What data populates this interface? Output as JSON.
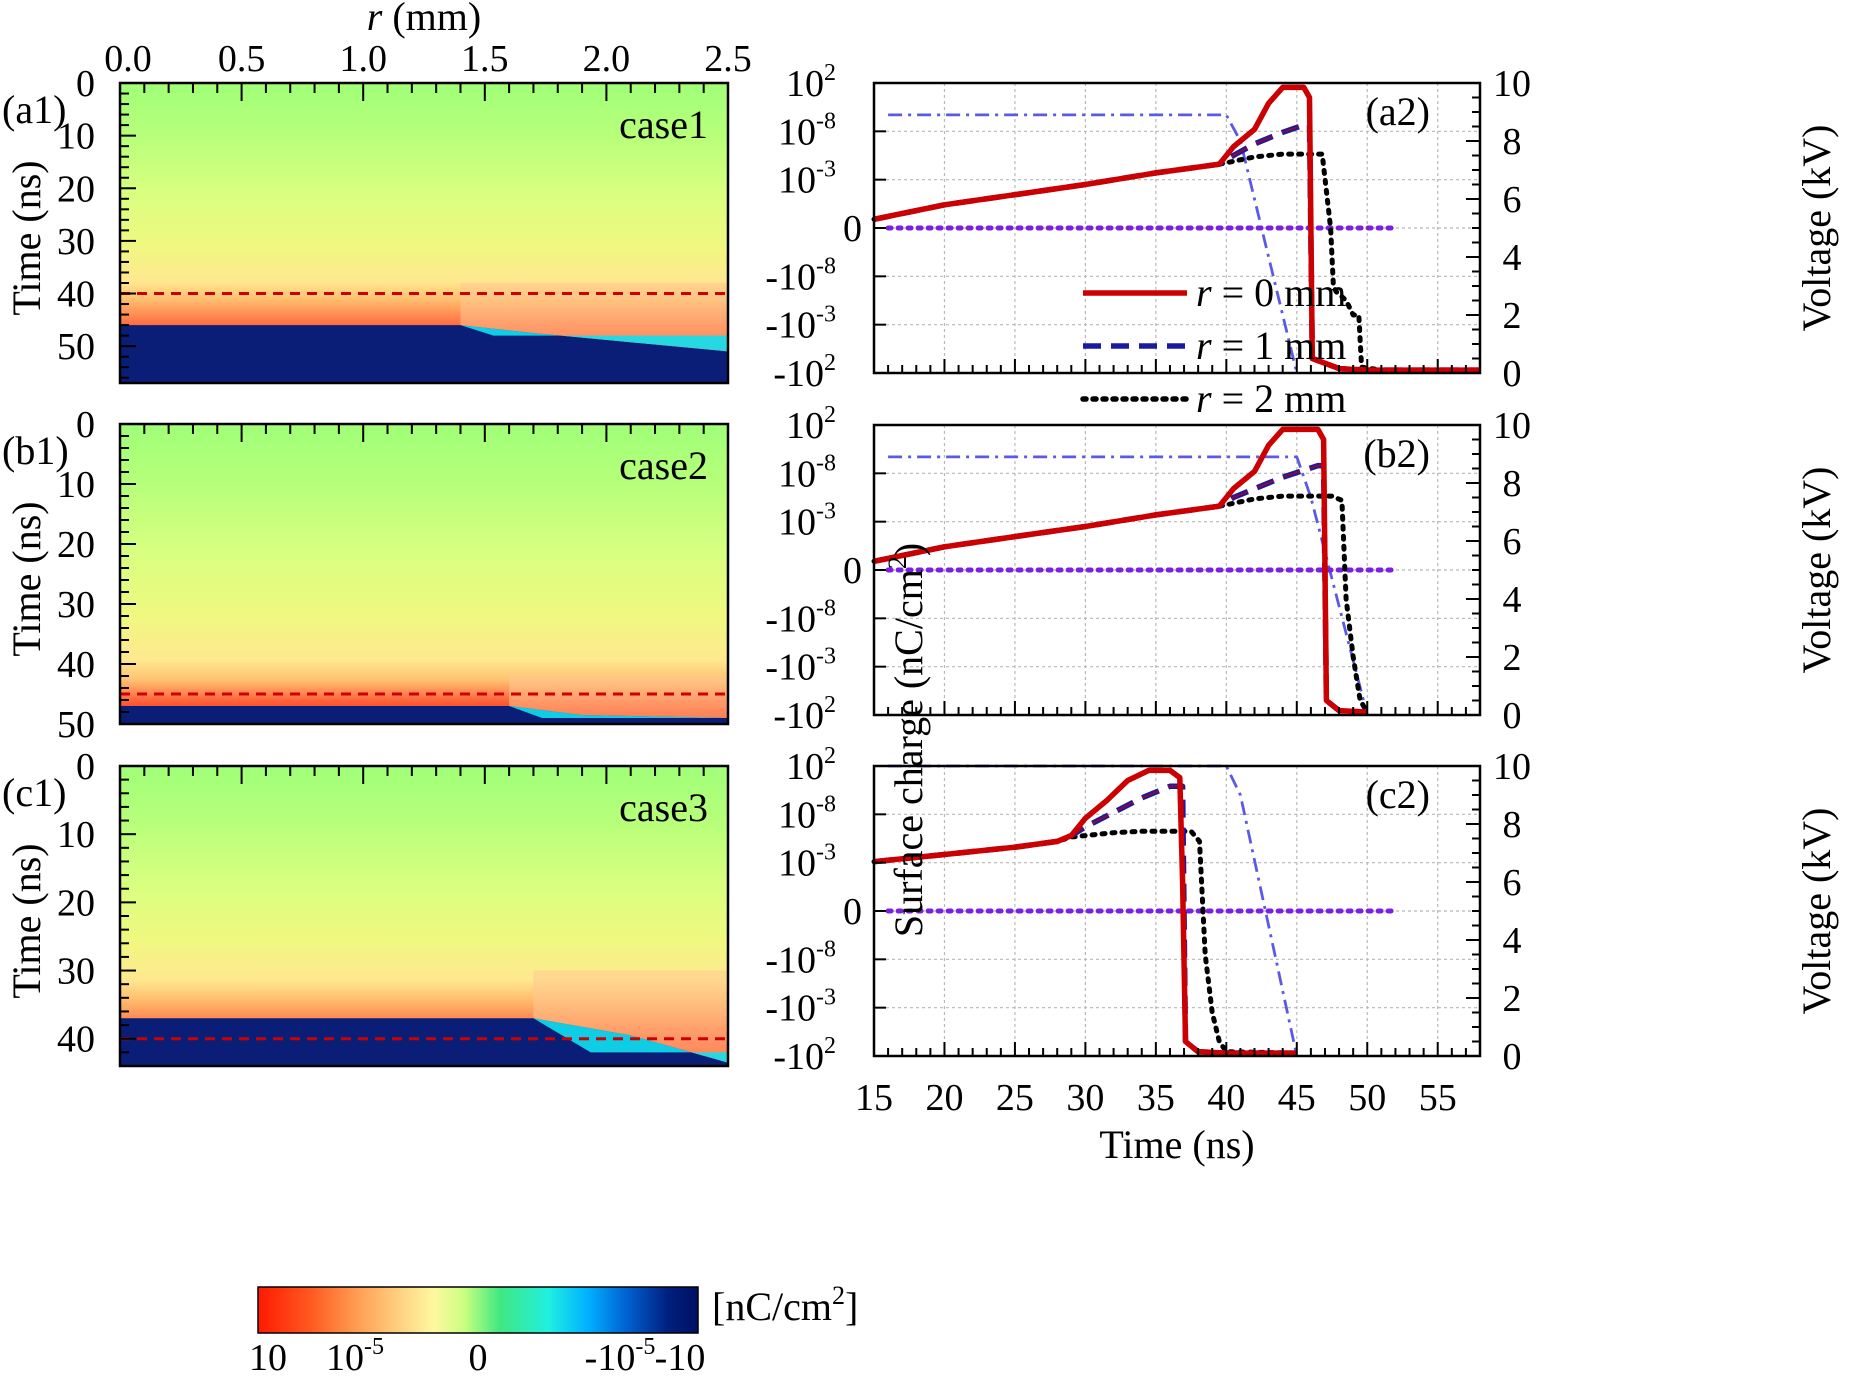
{
  "chart_data": [
    {
      "type": "heatmap",
      "panel": "(a1)",
      "case_label": "case1",
      "xlabel": "r (mm)",
      "xlabel_var": "r",
      "xlabel_unit": " (mm)",
      "ylabel": "Time (ns)",
      "xlim": [
        0,
        2.5
      ],
      "ylim": [
        0,
        57
      ],
      "x_ticks": [
        "0.0",
        "0.5",
        "1.0",
        "1.5",
        "2.0",
        "2.5"
      ],
      "x_tick_values": [
        0,
        0.5,
        1.0,
        1.5,
        2.0,
        2.5
      ],
      "y_ticks": [
        "0",
        "10",
        "20",
        "30",
        "40",
        "50"
      ],
      "y_tick_values": [
        0,
        10,
        20,
        30,
        40,
        50
      ],
      "dashed_line_time": 40,
      "positive_band_start_time": 37,
      "boundary": [
        [
          0,
          46
        ],
        [
          1.4,
          46
        ],
        [
          1.7,
          47.5
        ],
        [
          2.5,
          51
        ]
      ],
      "cyan_end_time": 48
    },
    {
      "type": "heatmap",
      "panel": "(b1)",
      "case_label": "case2",
      "ylabel": "Time (ns)",
      "xlim": [
        0,
        2.5
      ],
      "ylim": [
        0,
        50
      ],
      "y_ticks": [
        "0",
        "10",
        "20",
        "30",
        "40",
        "50"
      ],
      "y_tick_values": [
        0,
        10,
        20,
        30,
        40,
        50
      ],
      "dashed_line_time": 45,
      "positive_band_start_time": 41,
      "boundary": [
        [
          0,
          47
        ],
        [
          1.6,
          47
        ],
        [
          1.9,
          48.5
        ],
        [
          2.5,
          49
        ]
      ],
      "cyan_end_time": 49
    },
    {
      "type": "heatmap",
      "panel": "(c1)",
      "case_label": "case3",
      "ylabel": "Time (ns)",
      "xlim": [
        0,
        2.5
      ],
      "ylim": [
        0,
        44
      ],
      "y_ticks": [
        "0",
        "10",
        "20",
        "30",
        "40"
      ],
      "y_tick_values": [
        0,
        10,
        20,
        30,
        40
      ],
      "dashed_line_time": 40,
      "positive_band_start_time": 29,
      "boundary": [
        [
          0,
          37
        ],
        [
          1.7,
          37
        ],
        [
          2.1,
          39.5
        ],
        [
          2.5,
          43.5
        ]
      ],
      "cyan_end_time": 42
    },
    {
      "type": "line",
      "panel": "(a2)",
      "xlim": [
        15,
        58
      ],
      "y_left_ticks": [
        "10",
        "10",
        "10",
        "0",
        "-10",
        "-10",
        "-10"
      ],
      "y_left_exponents": [
        "2",
        "-8",
        "-3",
        "",
        "-8",
        "-3",
        "2"
      ],
      "y_right_ticks": [
        "0",
        "2",
        "4",
        "6",
        "8",
        "10"
      ],
      "y_right_tick_values": [
        0,
        2,
        4,
        6,
        8,
        10
      ],
      "y_right_label": "Voltage (kV)",
      "series": [
        {
          "name": "r = 0 mm",
          "color": "#cc0000",
          "style": "solid",
          "x": [
            15,
            20,
            25,
            30,
            35,
            39.5,
            40.5,
            42,
            43,
            44,
            45.5,
            45.9,
            46.1,
            48,
            50,
            58
          ],
          "y": [
            0.53,
            0.58,
            0.615,
            0.65,
            0.69,
            0.72,
            0.78,
            0.84,
            0.93,
            0.985,
            0.985,
            0.95,
            0.05,
            0.015,
            0.01,
            0.01
          ]
        },
        {
          "name": "r = 1 mm",
          "color": "#1a1aa0",
          "style": "dashed",
          "x": [
            15,
            20,
            25,
            30,
            35,
            39.5,
            40.5,
            42,
            44,
            45.5,
            45.9,
            46.1,
            48,
            50,
            58
          ],
          "y": [
            0.53,
            0.58,
            0.615,
            0.65,
            0.69,
            0.72,
            0.75,
            0.79,
            0.83,
            0.855,
            0.855,
            0.05,
            0.015,
            0.01,
            0.01
          ]
        },
        {
          "name": "r = 2 mm",
          "color": "#000000",
          "style": "dotted",
          "x": [
            15,
            20,
            25,
            30,
            35,
            39.5,
            40.5,
            42,
            44,
            46.8,
            47.4,
            47.6,
            47.8,
            48.5,
            49,
            49.4,
            49.6,
            51,
            58
          ],
          "y": [
            0.53,
            0.58,
            0.615,
            0.65,
            0.69,
            0.72,
            0.73,
            0.745,
            0.755,
            0.755,
            0.5,
            0.3,
            0.28,
            0.25,
            0.2,
            0.2,
            0.02,
            0.01,
            0.01
          ]
        },
        {
          "name": "",
          "color": "#7a20e0",
          "style": "dotted",
          "x": [
            16,
            52
          ],
          "y": [
            0.5,
            0.5
          ]
        },
        {
          "name": "",
          "color": "#5a5ae6",
          "style": "dashdot",
          "axis": "right",
          "x": [
            16,
            40,
            41,
            45
          ],
          "y": [
            8.9,
            8.9,
            8.0,
            0
          ]
        }
      ]
    },
    {
      "type": "line",
      "panel": "(b2)",
      "xlim": [
        15,
        58
      ],
      "y_left_ticks": [
        "10",
        "10",
        "10",
        "0",
        "-10",
        "-10",
        "-10"
      ],
      "y_left_exponents": [
        "2",
        "-8",
        "-3",
        "",
        "-8",
        "-3",
        "2"
      ],
      "y_right_ticks": [
        "0",
        "2",
        "4",
        "6",
        "8",
        "10"
      ],
      "y_right_tick_values": [
        0,
        2,
        4,
        6,
        8,
        10
      ],
      "y_right_label": "Voltage (kV)",
      "series": [
        {
          "name": "r = 0 mm",
          "color": "#cc0000",
          "style": "solid",
          "x": [
            15,
            20,
            25,
            30,
            35,
            39.5,
            40.5,
            42,
            43,
            44,
            46.5,
            46.9,
            47.1,
            48,
            50
          ],
          "y": [
            0.53,
            0.58,
            0.615,
            0.65,
            0.69,
            0.72,
            0.78,
            0.84,
            0.93,
            0.985,
            0.985,
            0.95,
            0.05,
            0.015,
            0.01
          ]
        },
        {
          "name": "r = 1 mm",
          "color": "#1a1aa0",
          "style": "dashed",
          "x": [
            15,
            20,
            25,
            30,
            35,
            39.5,
            40.5,
            42,
            44,
            46.5,
            46.9,
            47.1,
            48,
            50
          ],
          "y": [
            0.53,
            0.58,
            0.615,
            0.65,
            0.69,
            0.72,
            0.75,
            0.78,
            0.82,
            0.86,
            0.86,
            0.05,
            0.015,
            0.01
          ]
        },
        {
          "name": "r = 2 mm",
          "color": "#000000",
          "style": "dotted",
          "x": [
            15,
            20,
            25,
            30,
            35,
            39.5,
            40.5,
            42,
            44,
            47.5,
            48.2,
            48.5,
            49,
            49.5,
            50
          ],
          "y": [
            0.53,
            0.58,
            0.615,
            0.65,
            0.69,
            0.72,
            0.73,
            0.745,
            0.755,
            0.755,
            0.74,
            0.4,
            0.2,
            0.05,
            0.01
          ]
        },
        {
          "name": "",
          "color": "#7a20e0",
          "style": "dotted",
          "x": [
            16,
            52
          ],
          "y": [
            0.5,
            0.5
          ]
        },
        {
          "name": "",
          "color": "#5a5ae6",
          "style": "dashdot",
          "axis": "right",
          "x": [
            16,
            45,
            46,
            50
          ],
          "y": [
            8.9,
            8.9,
            7.5,
            0
          ]
        }
      ]
    },
    {
      "type": "line",
      "panel": "(c2)",
      "xlim": [
        15,
        58
      ],
      "x_ticks": [
        "15",
        "20",
        "25",
        "30",
        "35",
        "40",
        "45",
        "50",
        "55"
      ],
      "x_tick_values": [
        15,
        20,
        25,
        30,
        35,
        40,
        45,
        50,
        55
      ],
      "xlabel": "Time (ns)",
      "y_left_ticks": [
        "10",
        "10",
        "10",
        "0",
        "-10",
        "-10",
        "-10"
      ],
      "y_left_exponents": [
        "2",
        "-8",
        "-3",
        "",
        "-8",
        "-3",
        "2"
      ],
      "y_right_ticks": [
        "0",
        "2",
        "4",
        "6",
        "8",
        "10"
      ],
      "y_right_tick_values": [
        0,
        2,
        4,
        6,
        8,
        10
      ],
      "y_right_label": "Voltage (kV)",
      "series": [
        {
          "name": "r = 0 mm",
          "color": "#cc0000",
          "style": "solid",
          "x": [
            15,
            20,
            25,
            28,
            29,
            30,
            31.5,
            33,
            34.5,
            36,
            36.7,
            36.9,
            37.1,
            38,
            40,
            45
          ],
          "y": [
            0.67,
            0.695,
            0.72,
            0.74,
            0.76,
            0.82,
            0.88,
            0.95,
            0.985,
            0.985,
            0.96,
            0.6,
            0.05,
            0.015,
            0.01,
            0.01
          ]
        },
        {
          "name": "r = 1 mm",
          "color": "#1a1aa0",
          "style": "dashed",
          "x": [
            15,
            20,
            25,
            28,
            29,
            30,
            32,
            34,
            36,
            36.9,
            37.1,
            38,
            40,
            45
          ],
          "y": [
            0.67,
            0.695,
            0.72,
            0.74,
            0.76,
            0.79,
            0.84,
            0.89,
            0.93,
            0.93,
            0.05,
            0.015,
            0.01,
            0.01
          ]
        },
        {
          "name": "r = 2 mm",
          "color": "#000000",
          "style": "dotted",
          "x": [
            15,
            20,
            25,
            28,
            29,
            30,
            32,
            34,
            37.5,
            38.1,
            38.5,
            39,
            39.5,
            40,
            45
          ],
          "y": [
            0.67,
            0.695,
            0.72,
            0.74,
            0.755,
            0.76,
            0.77,
            0.775,
            0.775,
            0.74,
            0.35,
            0.15,
            0.05,
            0.015,
            0.01
          ]
        },
        {
          "name": "",
          "color": "#7a20e0",
          "style": "dotted",
          "x": [
            16,
            52
          ],
          "y": [
            0.5,
            0.5
          ]
        },
        {
          "name": "",
          "color": "#5a5ae6",
          "style": "dashdot",
          "axis": "right",
          "x": [
            16,
            40,
            41,
            45
          ],
          "y": [
            10,
            10,
            9.0,
            0
          ]
        }
      ]
    }
  ],
  "shared_ylabel": "Surface charge (nC/cm",
  "shared_ylabel_sup": "2",
  "shared_ylabel_close": ")",
  "legend": [
    {
      "var": "r",
      "text": " = 0 mm",
      "color": "#cc0000",
      "style": "solid"
    },
    {
      "var": "r",
      "text": " = 1 mm",
      "color": "#1a1aa0",
      "style": "dashed"
    },
    {
      "var": "r",
      "text": " = 2 mm",
      "color": "#000000",
      "style": "dotted"
    }
  ],
  "colorbar": {
    "unit": "[nC/cm",
    "unit_sup": "2",
    "unit_close": "]",
    "labels": [
      {
        "base": "10",
        "exp": ""
      },
      {
        "base": "10",
        "exp": "-5"
      },
      {
        "base": "0",
        "exp": ""
      },
      {
        "base": "-10",
        "exp": "-5"
      },
      {
        "base": "-10",
        "exp": ""
      }
    ],
    "colors": [
      "#ff1a00",
      "#ff5a20",
      "#ff9a50",
      "#ffd080",
      "#fff8a0",
      "#c8ff80",
      "#40e880",
      "#20f0e0",
      "#00b0ff",
      "#0060d0",
      "#002080",
      "#001060"
    ]
  }
}
